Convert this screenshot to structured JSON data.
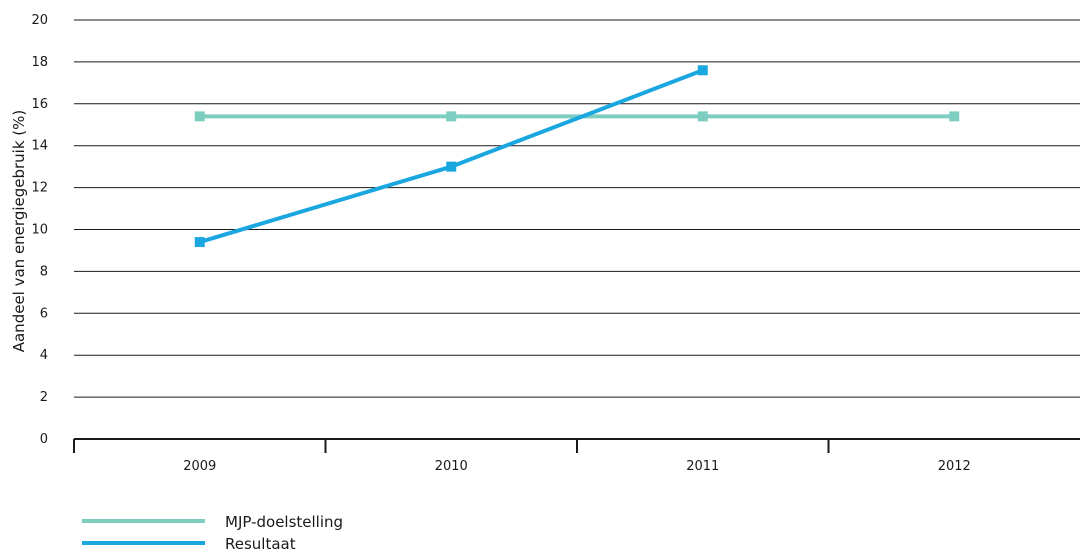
{
  "chart_data": {
    "type": "line",
    "title": "",
    "xlabel": "",
    "ylabel": "Aandeel van energiegebruik (%)",
    "categories": [
      "2009",
      "2010",
      "2011",
      "2012"
    ],
    "ylim": [
      0,
      20
    ],
    "yticks": [
      0,
      2,
      4,
      6,
      8,
      10,
      12,
      14,
      16,
      18,
      20
    ],
    "grid": true,
    "legend_position": "bottom-left",
    "series": [
      {
        "name": "MJP-doelstelling",
        "color": "#7ecdc1",
        "values": [
          15.4,
          15.4,
          15.4,
          15.4
        ]
      },
      {
        "name": "Resultaat",
        "color": "#1aa7e0",
        "values": [
          9.4,
          13.0,
          17.6,
          null
        ]
      }
    ]
  }
}
